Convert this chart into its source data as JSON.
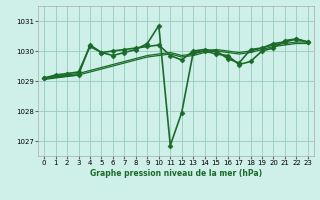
{
  "title": "Graphe pression niveau de la mer (hPa)",
  "bg_color": "#cff0e8",
  "grid_color": "#99ccbb",
  "line_color": "#1a6b2a",
  "marker_color": "#1a6b2a",
  "xlim": [
    -0.5,
    23.5
  ],
  "ylim": [
    1026.5,
    1031.5
  ],
  "yticks": [
    1027,
    1028,
    1029,
    1030,
    1031
  ],
  "xticks": [
    0,
    1,
    2,
    3,
    4,
    5,
    6,
    7,
    8,
    9,
    10,
    11,
    12,
    13,
    14,
    15,
    16,
    17,
    18,
    19,
    20,
    21,
    22,
    23
  ],
  "series": [
    {
      "x": [
        0,
        1,
        2,
        3,
        4,
        5,
        6,
        7,
        8,
        9,
        10,
        11,
        12,
        13,
        14,
        15,
        16,
        17,
        18,
        19,
        20,
        21,
        22,
        23
      ],
      "y": [
        1029.1,
        1029.2,
        1029.25,
        1029.3,
        1030.15,
        1029.95,
        1030.0,
        1030.05,
        1030.1,
        1030.15,
        1030.2,
        1029.85,
        1029.7,
        1030.0,
        1030.05,
        1030.0,
        1029.75,
        1029.6,
        1030.05,
        1030.1,
        1030.25,
        1030.3,
        1030.4,
        1030.3
      ],
      "marker": "D",
      "markersize": 2.5,
      "linewidth": 1.2
    },
    {
      "x": [
        0,
        1,
        2,
        3,
        4,
        5,
        6,
        7,
        8,
        9,
        10,
        11,
        12,
        13,
        14,
        15,
        16,
        17,
        18,
        19,
        20,
        21,
        22,
        23
      ],
      "y": [
        1029.05,
        1029.1,
        1029.15,
        1029.2,
        1029.3,
        1029.4,
        1029.5,
        1029.6,
        1029.7,
        1029.8,
        1029.85,
        1029.9,
        1029.8,
        1029.85,
        1029.95,
        1030.0,
        1029.95,
        1029.9,
        1029.95,
        1030.05,
        1030.15,
        1030.2,
        1030.25,
        1030.25
      ],
      "marker": null,
      "markersize": 0,
      "linewidth": 0.9
    },
    {
      "x": [
        0,
        1,
        2,
        3,
        4,
        5,
        6,
        7,
        8,
        9,
        10,
        11,
        12,
        13,
        14,
        15,
        16,
        17,
        18,
        19,
        20,
        21,
        22,
        23
      ],
      "y": [
        1029.1,
        1029.15,
        1029.2,
        1029.25,
        1029.35,
        1029.45,
        1029.55,
        1029.65,
        1029.75,
        1029.85,
        1029.9,
        1029.95,
        1029.85,
        1029.9,
        1030.0,
        1030.05,
        1030.0,
        1029.95,
        1030.0,
        1030.1,
        1030.2,
        1030.25,
        1030.3,
        1030.3
      ],
      "marker": null,
      "markersize": 0,
      "linewidth": 0.9
    },
    {
      "x": [
        0,
        3,
        4,
        5,
        6,
        7,
        8,
        9,
        10,
        11,
        12,
        13,
        14,
        15,
        16,
        17,
        18,
        19,
        20,
        21,
        22,
        23
      ],
      "y": [
        1029.1,
        1029.2,
        1030.2,
        1029.95,
        1029.85,
        1029.95,
        1030.05,
        1030.25,
        1030.85,
        1026.85,
        1027.95,
        1029.95,
        1030.0,
        1029.9,
        1029.85,
        1029.55,
        1029.65,
        1030.0,
        1030.1,
        1030.35,
        1030.4,
        1030.3
      ],
      "marker": "D",
      "markersize": 2.5,
      "linewidth": 1.2
    }
  ]
}
